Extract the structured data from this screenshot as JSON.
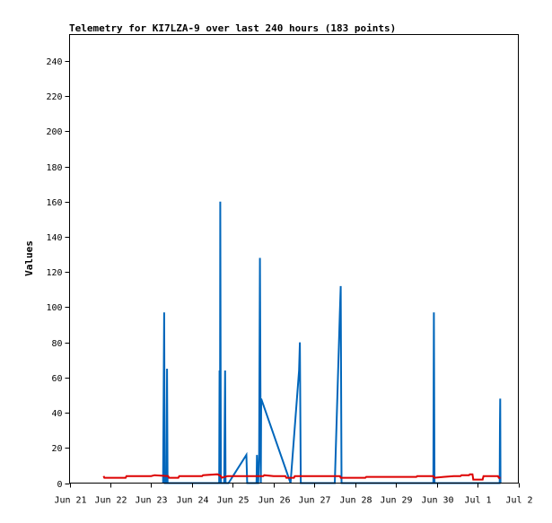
{
  "chart_data": {
    "type": "line",
    "title": "Telemetry for KI7LZA-9 over last 240 hours (183 points)",
    "xlabel": "",
    "ylabel": "Values",
    "xlim": [
      "2024-06-21T00:00",
      "2024-07-02T00:00"
    ],
    "ylim": [
      0,
      255
    ],
    "x_tick_labels": [
      {
        "t": "2024-06-21T00:00",
        "label": "Jun 21"
      },
      {
        "t": "2024-06-22T00:00",
        "label": "Jun 22"
      },
      {
        "t": "2024-06-23T00:00",
        "label": "Jun 23"
      },
      {
        "t": "2024-06-24T00:00",
        "label": "Jun 24"
      },
      {
        "t": "2024-06-25T00:00",
        "label": "Jun 25"
      },
      {
        "t": "2024-06-26T00:00",
        "label": "Jun 26"
      },
      {
        "t": "2024-06-27T00:00",
        "label": "Jun 27"
      },
      {
        "t": "2024-06-28T00:00",
        "label": "Jun 28"
      },
      {
        "t": "2024-06-29T00:00",
        "label": "Jun 29"
      },
      {
        "t": "2024-06-30T00:00",
        "label": "Jun 30"
      },
      {
        "t": "2024-07-01T00:00",
        "label": "Jul 1"
      },
      {
        "t": "2024-07-02T00:00",
        "label": "Jul 2"
      }
    ],
    "y_ticks": [
      0,
      20,
      40,
      60,
      80,
      100,
      120,
      140,
      160,
      180,
      200,
      220,
      240
    ],
    "grid": false,
    "legend": "none",
    "series": [
      {
        "color": "#0066bb",
        "points": [
          [
            "2024-06-23T07:00",
            0
          ],
          [
            "2024-06-23T07:20",
            48
          ],
          [
            "2024-06-23T07:40",
            97
          ],
          [
            "2024-06-23T08:00",
            0
          ],
          [
            "2024-06-23T09:00",
            0
          ],
          [
            "2024-06-23T09:20",
            65
          ],
          [
            "2024-06-23T09:40",
            0
          ],
          [
            "2024-06-24T16:00",
            0
          ],
          [
            "2024-06-24T16:15",
            64
          ],
          [
            "2024-06-24T16:30",
            0
          ],
          [
            "2024-06-24T16:40",
            160
          ],
          [
            "2024-06-24T17:00",
            0
          ],
          [
            "2024-06-24T19:00",
            0
          ],
          [
            "2024-06-24T19:15",
            32
          ],
          [
            "2024-06-24T19:30",
            64
          ],
          [
            "2024-06-24T19:45",
            0
          ],
          [
            "2024-06-24T21:30",
            0
          ],
          [
            "2024-06-25T08:00",
            16
          ],
          [
            "2024-06-25T08:30",
            0
          ],
          [
            "2024-06-25T14:00",
            0
          ],
          [
            "2024-06-25T14:15",
            16
          ],
          [
            "2024-06-25T14:30",
            0
          ],
          [
            "2024-06-25T15:00",
            0
          ],
          [
            "2024-06-25T15:30",
            16
          ],
          [
            "2024-06-25T16:00",
            128
          ],
          [
            "2024-06-25T16:30",
            0
          ],
          [
            "2024-06-25T16:45",
            48
          ],
          [
            "2024-06-26T10:00",
            0
          ],
          [
            "2024-06-26T15:00",
            64
          ],
          [
            "2024-06-26T15:30",
            80
          ],
          [
            "2024-06-26T16:00",
            0
          ],
          [
            "2024-06-27T12:00",
            0
          ],
          [
            "2024-06-27T15:00",
            96
          ],
          [
            "2024-06-27T15:30",
            112
          ],
          [
            "2024-06-27T16:00",
            0
          ],
          [
            "2024-06-29T22:00",
            0
          ],
          [
            "2024-06-29T22:20",
            97
          ],
          [
            "2024-06-29T22:40",
            0
          ],
          [
            "2024-07-01T13:00",
            0
          ],
          [
            "2024-07-01T13:10",
            32
          ],
          [
            "2024-07-01T13:20",
            48
          ],
          [
            "2024-07-01T13:30",
            0
          ]
        ]
      },
      {
        "color": "#dd0000",
        "points": [
          [
            "2024-06-21T20:00",
            4
          ],
          [
            "2024-06-21T20:30",
            3
          ],
          [
            "2024-06-22T09:00",
            3
          ],
          [
            "2024-06-22T09:30",
            4
          ],
          [
            "2024-06-23T00:00",
            4
          ],
          [
            "2024-06-23T02:00",
            4.5
          ],
          [
            "2024-06-23T10:00",
            4
          ],
          [
            "2024-06-23T10:30",
            3
          ],
          [
            "2024-06-23T16:00",
            3
          ],
          [
            "2024-06-23T16:30",
            4
          ],
          [
            "2024-06-24T06:00",
            4
          ],
          [
            "2024-06-24T06:30",
            4.5
          ],
          [
            "2024-06-24T15:00",
            5
          ],
          [
            "2024-06-24T17:00",
            4
          ],
          [
            "2024-06-24T17:30",
            3
          ],
          [
            "2024-06-24T21:00",
            4
          ],
          [
            "2024-06-25T12:00",
            4
          ],
          [
            "2024-06-25T18:00",
            4
          ],
          [
            "2024-06-25T18:30",
            4.5
          ],
          [
            "2024-06-26T00:00",
            4
          ],
          [
            "2024-06-26T07:00",
            4
          ],
          [
            "2024-06-26T07:30",
            3
          ],
          [
            "2024-06-26T12:00",
            3
          ],
          [
            "2024-06-26T12:30",
            4
          ],
          [
            "2024-06-27T12:00",
            4
          ],
          [
            "2024-06-27T15:00",
            4
          ],
          [
            "2024-06-27T15:30",
            3
          ],
          [
            "2024-06-28T06:00",
            3
          ],
          [
            "2024-06-28T06:30",
            3.5
          ],
          [
            "2024-06-29T12:00",
            3.5
          ],
          [
            "2024-06-29T12:30",
            4
          ],
          [
            "2024-06-29T22:00",
            4
          ],
          [
            "2024-06-29T22:30",
            3
          ],
          [
            "2024-06-30T04:00",
            3.5
          ],
          [
            "2024-06-30T10:00",
            4
          ],
          [
            "2024-06-30T14:00",
            4
          ],
          [
            "2024-06-30T14:30",
            4.5
          ],
          [
            "2024-06-30T19:00",
            4.5
          ],
          [
            "2024-06-30T19:30",
            5
          ],
          [
            "2024-06-30T21:00",
            5
          ],
          [
            "2024-06-30T21:30",
            2
          ],
          [
            "2024-07-01T03:00",
            2
          ],
          [
            "2024-07-01T03:30",
            4
          ],
          [
            "2024-07-01T12:00",
            4
          ],
          [
            "2024-07-01T12:30",
            3
          ],
          [
            "2024-07-01T13:30",
            3
          ]
        ]
      },
      {
        "color": "#000000",
        "points": [
          [
            "2024-06-21T20:00",
            0
          ],
          [
            "2024-07-01T13:30",
            0
          ]
        ]
      }
    ]
  }
}
